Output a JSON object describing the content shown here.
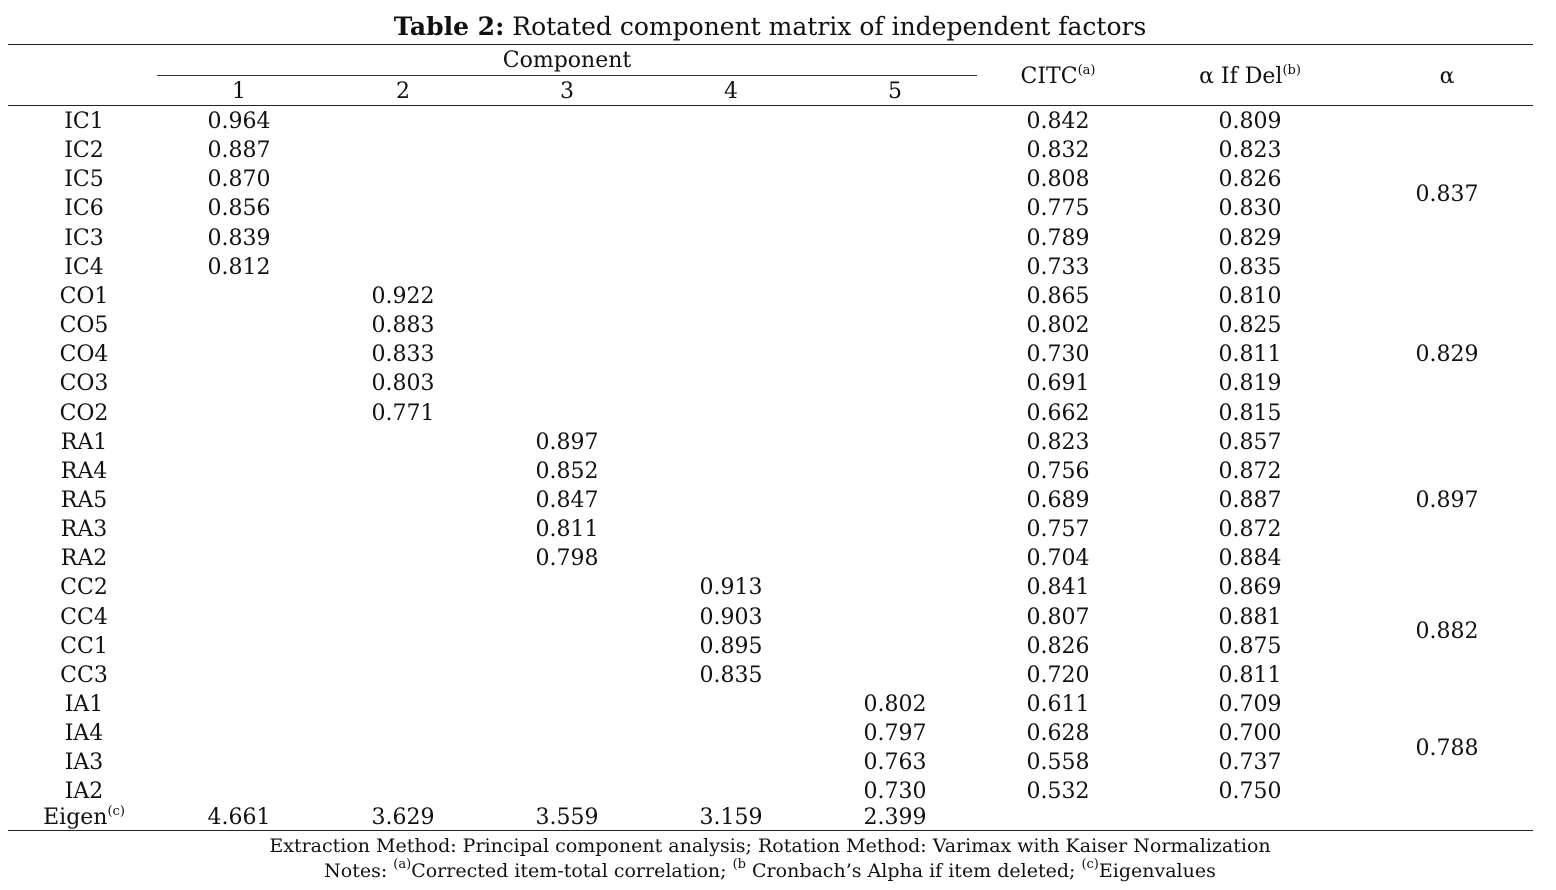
{
  "title": {
    "label": "Table 2:",
    "text": " Rotated component matrix of independent factors"
  },
  "header": {
    "component_label": "Component",
    "component_numbers": [
      "1",
      "2",
      "3",
      "4",
      "5"
    ],
    "citc": "CITC",
    "citc_sup": "(a)",
    "alpha_if_del": "α If Del",
    "alpha_if_del_sup": "(b)",
    "alpha": "α"
  },
  "rows": [
    {
      "item": "IC1",
      "loadings": [
        "0.964",
        "",
        "",
        "",
        ""
      ],
      "citc": "0.842",
      "aid": "0.809"
    },
    {
      "item": "IC2",
      "loadings": [
        "0.887",
        "",
        "",
        "",
        ""
      ],
      "citc": "0.832",
      "aid": "0.823"
    },
    {
      "item": "IC5",
      "loadings": [
        "0.870",
        "",
        "",
        "",
        ""
      ],
      "citc": "0.808",
      "aid": "0.826"
    },
    {
      "item": "IC6",
      "loadings": [
        "0.856",
        "",
        "",
        "",
        ""
      ],
      "citc": "0.775",
      "aid": "0.830"
    },
    {
      "item": "IC3",
      "loadings": [
        "0.839",
        "",
        "",
        "",
        ""
      ],
      "citc": "0.789",
      "aid": "0.829"
    },
    {
      "item": "IC4",
      "loadings": [
        "0.812",
        "",
        "",
        "",
        ""
      ],
      "citc": "0.733",
      "aid": "0.835"
    },
    {
      "item": "CO1",
      "loadings": [
        "",
        "0.922",
        "",
        "",
        ""
      ],
      "citc": "0.865",
      "aid": "0.810"
    },
    {
      "item": "CO5",
      "loadings": [
        "",
        "0.883",
        "",
        "",
        ""
      ],
      "citc": "0.802",
      "aid": "0.825"
    },
    {
      "item": "CO4",
      "loadings": [
        "",
        "0.833",
        "",
        "",
        ""
      ],
      "citc": "0.730",
      "aid": "0.811"
    },
    {
      "item": "CO3",
      "loadings": [
        "",
        "0.803",
        "",
        "",
        ""
      ],
      "citc": "0.691",
      "aid": "0.819"
    },
    {
      "item": "CO2",
      "loadings": [
        "",
        "0.771",
        "",
        "",
        ""
      ],
      "citc": "0.662",
      "aid": "0.815"
    },
    {
      "item": "RA1",
      "loadings": [
        "",
        "",
        "0.897",
        "",
        ""
      ],
      "citc": "0.823",
      "aid": "0.857"
    },
    {
      "item": "RA4",
      "loadings": [
        "",
        "",
        "0.852",
        "",
        ""
      ],
      "citc": "0.756",
      "aid": "0.872"
    },
    {
      "item": "RA5",
      "loadings": [
        "",
        "",
        "0.847",
        "",
        ""
      ],
      "citc": "0.689",
      "aid": "0.887"
    },
    {
      "item": "RA3",
      "loadings": [
        "",
        "",
        "0.811",
        "",
        ""
      ],
      "citc": "0.757",
      "aid": "0.872"
    },
    {
      "item": "RA2",
      "loadings": [
        "",
        "",
        "0.798",
        "",
        ""
      ],
      "citc": "0.704",
      "aid": "0.884"
    },
    {
      "item": "CC2",
      "loadings": [
        "",
        "",
        "",
        "0.913",
        ""
      ],
      "citc": "0.841",
      "aid": "0.869"
    },
    {
      "item": "CC4",
      "loadings": [
        "",
        "",
        "",
        "0.903",
        ""
      ],
      "citc": "0.807",
      "aid": "0.881"
    },
    {
      "item": "CC1",
      "loadings": [
        "",
        "",
        "",
        "0.895",
        ""
      ],
      "citc": "0.826",
      "aid": "0.875"
    },
    {
      "item": "CC3",
      "loadings": [
        "",
        "",
        "",
        "0.835",
        ""
      ],
      "citc": "0.720",
      "aid": "0.811"
    },
    {
      "item": "IA1",
      "loadings": [
        "",
        "",
        "",
        "",
        "0.802"
      ],
      "citc": "0.611",
      "aid": "0.709"
    },
    {
      "item": "IA4",
      "loadings": [
        "",
        "",
        "",
        "",
        "0.797"
      ],
      "citc": "0.628",
      "aid": "0.700"
    },
    {
      "item": "IA3",
      "loadings": [
        "",
        "",
        "",
        "",
        "0.763"
      ],
      "citc": "0.558",
      "aid": "0.737"
    },
    {
      "item": "IA2",
      "loadings": [
        "",
        "",
        "",
        "",
        "0.730"
      ],
      "citc": "0.532",
      "aid": "0.750"
    }
  ],
  "alpha_groups": [
    {
      "value": "0.837",
      "first_row": 0,
      "last_row": 5
    },
    {
      "value": "0.829",
      "first_row": 6,
      "last_row": 10
    },
    {
      "value": "0.897",
      "first_row": 11,
      "last_row": 15
    },
    {
      "value": "0.882",
      "first_row": 16,
      "last_row": 19
    },
    {
      "value": "0.788",
      "first_row": 20,
      "last_row": 23
    }
  ],
  "eigen": {
    "label": "Eigen",
    "label_sup": "(c)",
    "values": [
      "4.661",
      "3.629",
      "3.559",
      "3.159",
      "2.399"
    ]
  },
  "footnotes": {
    "line1": "Extraction Method: Principal component analysis; Rotation Method: Varimax with Kaiser Normalization",
    "line2_prefix": "Notes: ",
    "sup_a": "(a)",
    "text_a": "Corrected item-total correlation; ",
    "sup_b": "(b",
    "text_b": " Cronbach’s Alpha if item deleted; ",
    "sup_c": "(c)",
    "text_c": "Eigenvalues"
  }
}
